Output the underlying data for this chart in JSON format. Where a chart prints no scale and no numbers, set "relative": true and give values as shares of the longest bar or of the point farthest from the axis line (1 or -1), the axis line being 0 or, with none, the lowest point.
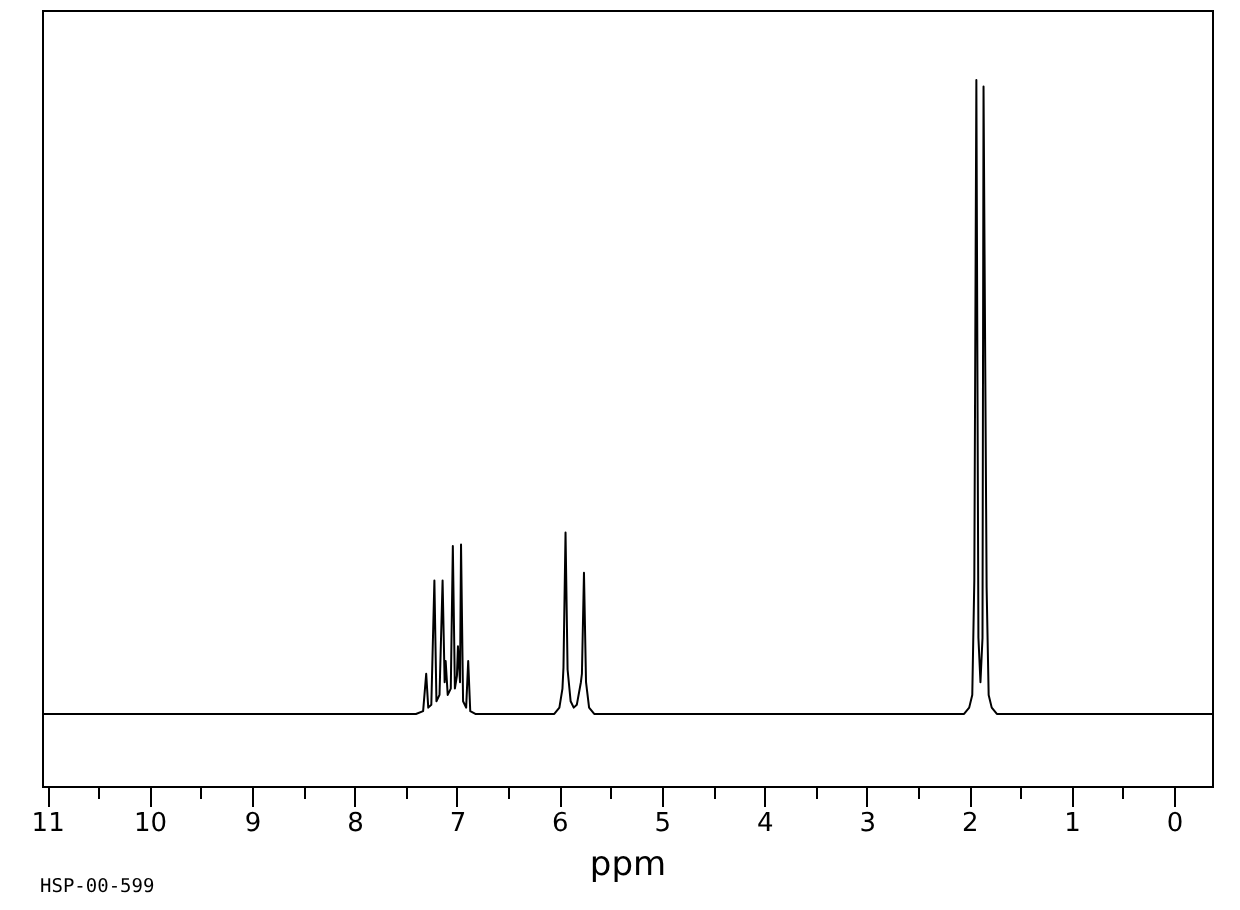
{
  "chart_data": {
    "type": "line",
    "xlabel": "ppm",
    "annotations": [
      "HSP-00-599"
    ],
    "relative": true,
    "line_style": "solid",
    "x": [
      11.05,
      7.4,
      7.33,
      7.3,
      7.28,
      7.25,
      7.22,
      7.2,
      7.17,
      7.14,
      7.12,
      7.11,
      7.09,
      7.06,
      7.04,
      7.02,
      7.0,
      6.99,
      6.97,
      6.96,
      6.94,
      6.91,
      6.89,
      6.87,
      6.82,
      6.05,
      6.0,
      5.97,
      5.96,
      5.94,
      5.92,
      5.89,
      5.86,
      5.83,
      5.79,
      5.78,
      5.76,
      5.74,
      5.71,
      5.66,
      2.05,
      2.0,
      1.97,
      1.95,
      1.93,
      1.91,
      1.89,
      1.87,
      1.86,
      1.83,
      1.81,
      1.78,
      1.73,
      -0.37
    ],
    "series": [
      {
        "color": "#000000",
        "values": [
          0.102,
          0.102,
          0.106,
          0.159,
          0.111,
          0.115,
          0.291,
          0.12,
          0.129,
          0.291,
          0.147,
          0.177,
          0.129,
          0.138,
          0.34,
          0.138,
          0.156,
          0.198,
          0.147,
          0.342,
          0.12,
          0.111,
          0.177,
          0.106,
          0.102,
          0.102,
          0.111,
          0.138,
          0.168,
          0.359,
          0.165,
          0.12,
          0.111,
          0.115,
          0.147,
          0.159,
          0.302,
          0.147,
          0.111,
          0.102,
          0.102,
          0.111,
          0.129,
          0.291,
          1.0,
          0.21,
          0.147,
          0.21,
          0.991,
          0.282,
          0.129,
          0.111,
          0.102,
          0.102
        ]
      }
    ],
    "xlim": [
      11.05,
      -0.37
    ],
    "xticks": [
      11,
      {
        "value": 10.5,
        "label": null
      },
      10,
      {
        "value": 9.5,
        "label": null
      },
      9,
      {
        "value": 8.5,
        "label": null
      },
      8,
      {
        "value": 7.5,
        "label": null
      },
      7,
      {
        "value": 6.5,
        "label": null
      },
      6,
      {
        "value": 5.5,
        "label": null
      },
      5,
      {
        "value": 4.5,
        "label": null
      },
      4,
      {
        "value": 3.5,
        "label": null
      },
      3,
      {
        "value": 2.5,
        "label": null
      },
      2,
      {
        "value": 1.5,
        "label": null
      },
      1,
      {
        "value": 0.5,
        "label": null
      },
      0
    ]
  }
}
